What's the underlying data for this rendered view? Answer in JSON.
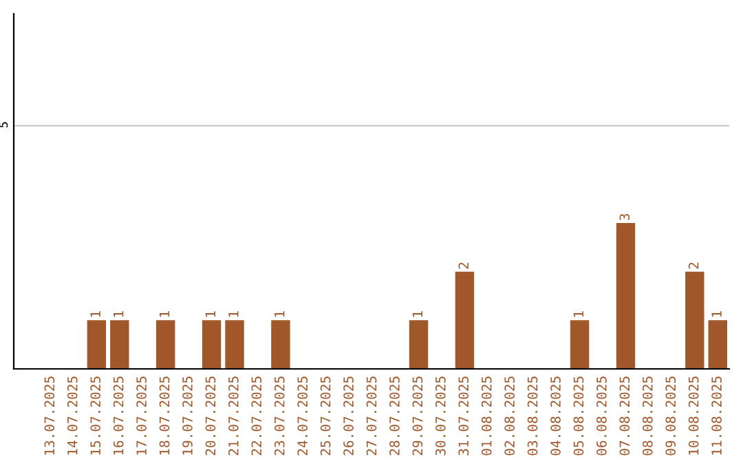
{
  "chart_data": {
    "type": "bar",
    "categories": [
      "13.07.2025",
      "14.07.2025",
      "15.07.2025",
      "16.07.2025",
      "17.07.2025",
      "18.07.2025",
      "19.07.2025",
      "20.07.2025",
      "21.07.2025",
      "22.07.2025",
      "23.07.2025",
      "24.07.2025",
      "25.07.2025",
      "26.07.2025",
      "27.07.2025",
      "28.07.2025",
      "29.07.2025",
      "30.07.2025",
      "31.07.2025",
      "01.08.2025",
      "02.08.2025",
      "03.08.2025",
      "04.08.2025",
      "05.08.2025",
      "06.08.2025",
      "07.08.2025",
      "08.08.2025",
      "09.08.2025",
      "10.08.2025",
      "11.08.2025"
    ],
    "values": [
      null,
      null,
      1,
      1,
      null,
      1,
      null,
      1,
      1,
      null,
      1,
      null,
      null,
      null,
      null,
      null,
      1,
      null,
      2,
      null,
      null,
      null,
      null,
      1,
      null,
      3,
      null,
      null,
      2,
      1
    ],
    "color": "#a0582a",
    "ylim": [
      0,
      7.3
    ],
    "yticks": [
      5
    ],
    "grid": "y",
    "data_labels": true
  }
}
